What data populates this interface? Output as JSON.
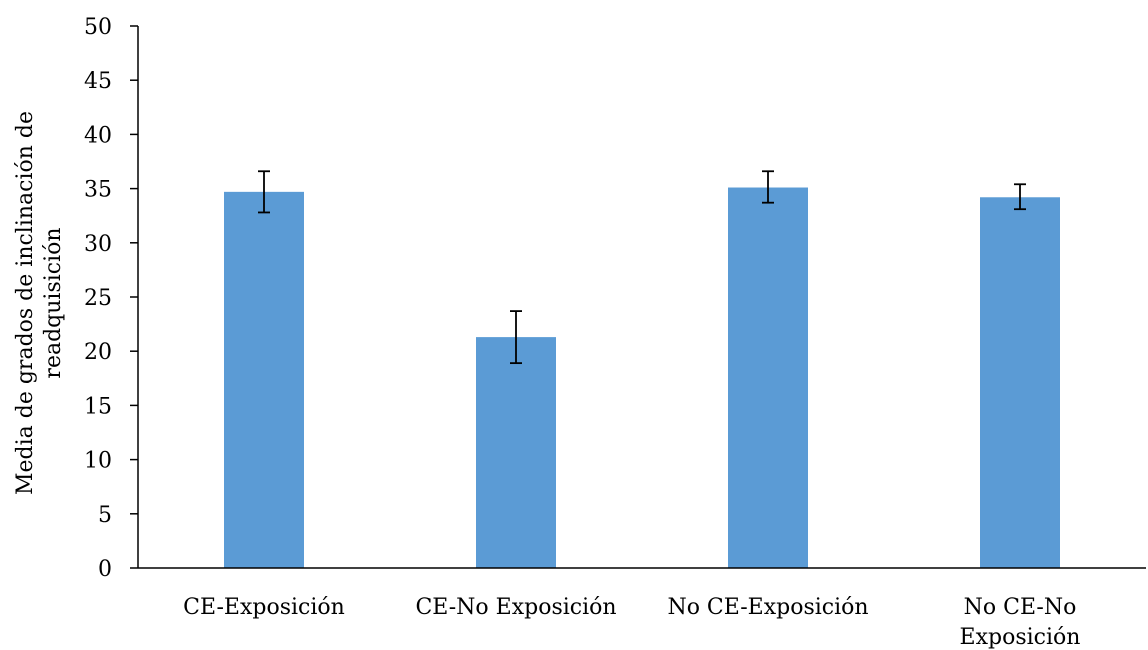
{
  "chart_data": {
    "type": "bar",
    "categories": [
      [
        "CE-Exposición"
      ],
      [
        "CE-No Exposición"
      ],
      [
        "No CE-Exposición"
      ],
      [
        "No CE-No",
        "Exposición"
      ]
    ],
    "values": [
      34.7,
      21.3,
      35.1,
      34.2
    ],
    "error_low": [
      32.8,
      18.9,
      33.7,
      33.1
    ],
    "error_high": [
      36.6,
      23.7,
      36.6,
      35.4
    ],
    "ylabel": [
      "Media de grados de inclinación de",
      "readquisición"
    ],
    "ylim": [
      0,
      50
    ],
    "yticks": [
      0,
      5,
      10,
      15,
      20,
      25,
      30,
      35,
      40,
      45,
      50
    ],
    "bar_color": "#5b9bd5",
    "grid": false,
    "legend": false
  }
}
